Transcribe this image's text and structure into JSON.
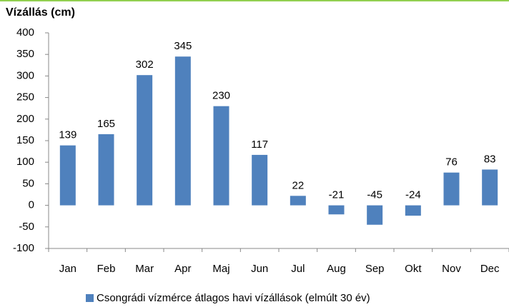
{
  "chart_data": {
    "type": "bar",
    "title": "Vízállás (cm)",
    "categories": [
      "Jan",
      "Feb",
      "Mar",
      "Apr",
      "Maj",
      "Jun",
      "Jul",
      "Aug",
      "Sep",
      "Okt",
      "Nov",
      "Dec"
    ],
    "series": [
      {
        "name": "Csongrádi vízmérce átlagos havi vízállások (elmúlt 30 év)",
        "color": "#4f81bd",
        "values": [
          139,
          165,
          302,
          345,
          230,
          117,
          22,
          -21,
          -45,
          -24,
          76,
          83
        ]
      }
    ],
    "ylim": [
      -100,
      400
    ],
    "yticks": [
      -100,
      -50,
      0,
      50,
      100,
      150,
      200,
      250,
      300,
      350,
      400
    ],
    "grid": false,
    "legend": "bottom"
  }
}
